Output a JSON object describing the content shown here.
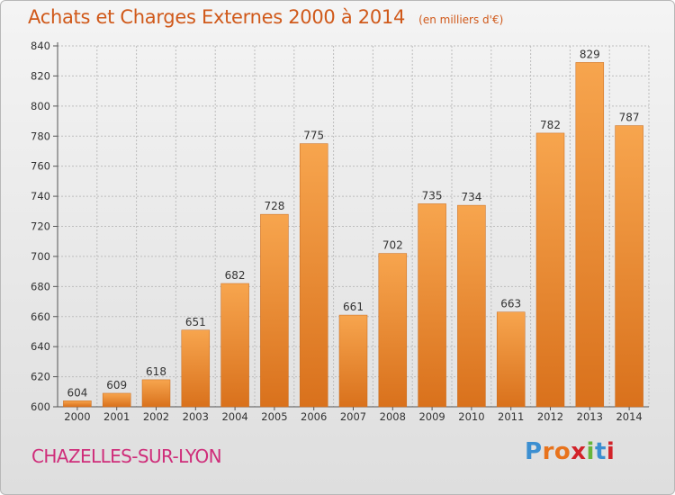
{
  "header": {
    "title": "Achats et Charges Externes 2000 à 2014",
    "unit": "(en milliers d'€)"
  },
  "footer": {
    "commune": "CHAZELLES-SUR-LYON",
    "brand_letters": [
      "P",
      "r",
      "o",
      "x",
      "i",
      "t",
      "i"
    ]
  },
  "colors": {
    "title": "#d0591a",
    "commune": "#cf2d7a",
    "bar_light": "#f7a54e",
    "bar_dark": "#d9711c",
    "grid": "#bdbdbd",
    "brand": [
      "#3c8fd1",
      "#e8731c",
      "#e8731c",
      "#d2232a",
      "#67b53b",
      "#3c8fd1",
      "#d2232a"
    ]
  },
  "chart_data": {
    "type": "bar",
    "title": "Achats et Charges Externes 2000 à 2014",
    "subtitle": "(en milliers d'€)",
    "categories": [
      "2000",
      "2001",
      "2002",
      "2003",
      "2004",
      "2005",
      "2006",
      "2007",
      "2008",
      "2009",
      "2010",
      "2011",
      "2012",
      "2013",
      "2014"
    ],
    "values": [
      604,
      609,
      618,
      651,
      682,
      728,
      775,
      661,
      702,
      735,
      734,
      663,
      782,
      829,
      787
    ],
    "ylim": [
      600,
      840
    ],
    "yticks": [
      600,
      620,
      640,
      660,
      680,
      700,
      720,
      740,
      760,
      780,
      800,
      820,
      840
    ],
    "grid": true,
    "data_labels": true
  }
}
